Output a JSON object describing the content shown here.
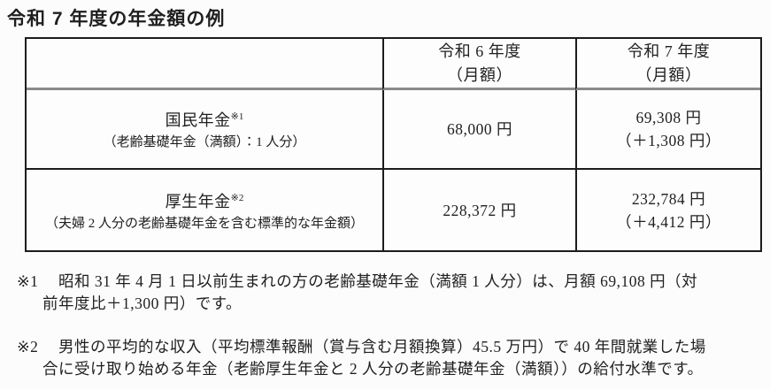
{
  "page": {
    "title": "令和 7 年度の年金額の例",
    "background_color": "#fcfcfc",
    "text_color": "#1f1f1f",
    "header_separator_color": "#8a8a8a",
    "border_color": "#1c1c1c"
  },
  "table": {
    "columns": {
      "year_r6": {
        "line1": "令和 6 年度",
        "line2": "（月額）"
      },
      "year_r7": {
        "line1": "令和 7 年度",
        "line2": "（月額）"
      }
    },
    "rows": [
      {
        "name": "国民年金",
        "footnote_ref": "※1",
        "description": "（老齢基礎年金（満額）：1 人分）",
        "r6_amount": "68,000 円",
        "r7_amount": "69,308 円",
        "r7_change": "（＋1,308 円）"
      },
      {
        "name": "厚生年金",
        "footnote_ref": "※2",
        "description": "（夫婦 2 人分の老齢基礎年金を含む標準的な年金額）",
        "r6_amount": "228,372 円",
        "r7_amount": "232,784 円",
        "r7_change": "（＋4,412 円）"
      }
    ]
  },
  "footnotes": [
    {
      "marker": "※1",
      "line1": "昭和 31 年 4 月 1 日以前生まれの方の老齢基礎年金（満額 1 人分）は、月額 69,108 円（対",
      "line2": "前年度比＋1,300 円）です。"
    },
    {
      "marker": "※2",
      "line1": "男性の平均的な収入（平均標準報酬（賞与含む月額換算）45.5 万円）で 40 年間就業した場",
      "line2": "合に受け取り始める年金（老齢厚生年金と 2 人分の老齢基礎年金（満額））の給付水準です。"
    }
  ]
}
